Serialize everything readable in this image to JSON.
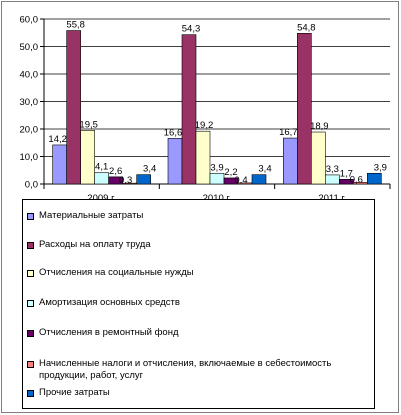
{
  "chart_data": {
    "type": "bar",
    "title": "",
    "xlabel": "",
    "ylabel": "",
    "ylim": [
      0,
      60
    ],
    "y_ticks": [
      "0,0",
      "10,0",
      "20,0",
      "30,0",
      "40,0",
      "50,0",
      "60,0"
    ],
    "grid": true,
    "legend_position": "bottom",
    "categories": [
      "2009 г.",
      "2010 г.",
      "2011 г."
    ],
    "series": [
      {
        "name": "Материальные затраты",
        "values": [
          14.2,
          16.6,
          16.7
        ],
        "labels": [
          "14,2",
          "16,6",
          "16,7"
        ],
        "color": "#9999ff"
      },
      {
        "name": "Расходы на оплату труда",
        "values": [
          55.8,
          54.3,
          54.8
        ],
        "labels": [
          "55,8",
          "54,3",
          "54,8"
        ],
        "color": "#993366"
      },
      {
        "name": "Отчисления на социальные нужды",
        "values": [
          19.5,
          19.2,
          18.9
        ],
        "labels": [
          "19,5",
          "19,2",
          "18,9"
        ],
        "color": "#ffffcc"
      },
      {
        "name": "Амортизация основных средств",
        "values": [
          4.1,
          3.9,
          3.3
        ],
        "labels": [
          "4,1",
          "3,9",
          "3,3"
        ],
        "color": "#ccffff"
      },
      {
        "name": "Отчисления в ремонтный фонд",
        "values": [
          2.6,
          2.2,
          1.7
        ],
        "labels": [
          "2,6",
          "2,2",
          "1,7"
        ],
        "color": "#660066"
      },
      {
        "name": "Начисленные налоги и отчисления, включаемые в себестоимость продукции, работ, услуг",
        "values": [
          0.3,
          0.4,
          0.6
        ],
        "labels": [
          "0,3",
          "0,4",
          "0,6"
        ],
        "color": "#ff8080"
      },
      {
        "name": "Прочие затраты",
        "values": [
          3.4,
          3.4,
          3.9
        ],
        "labels": [
          "3,4",
          "3,4",
          "3,9"
        ],
        "color": "#0066cc"
      }
    ]
  }
}
